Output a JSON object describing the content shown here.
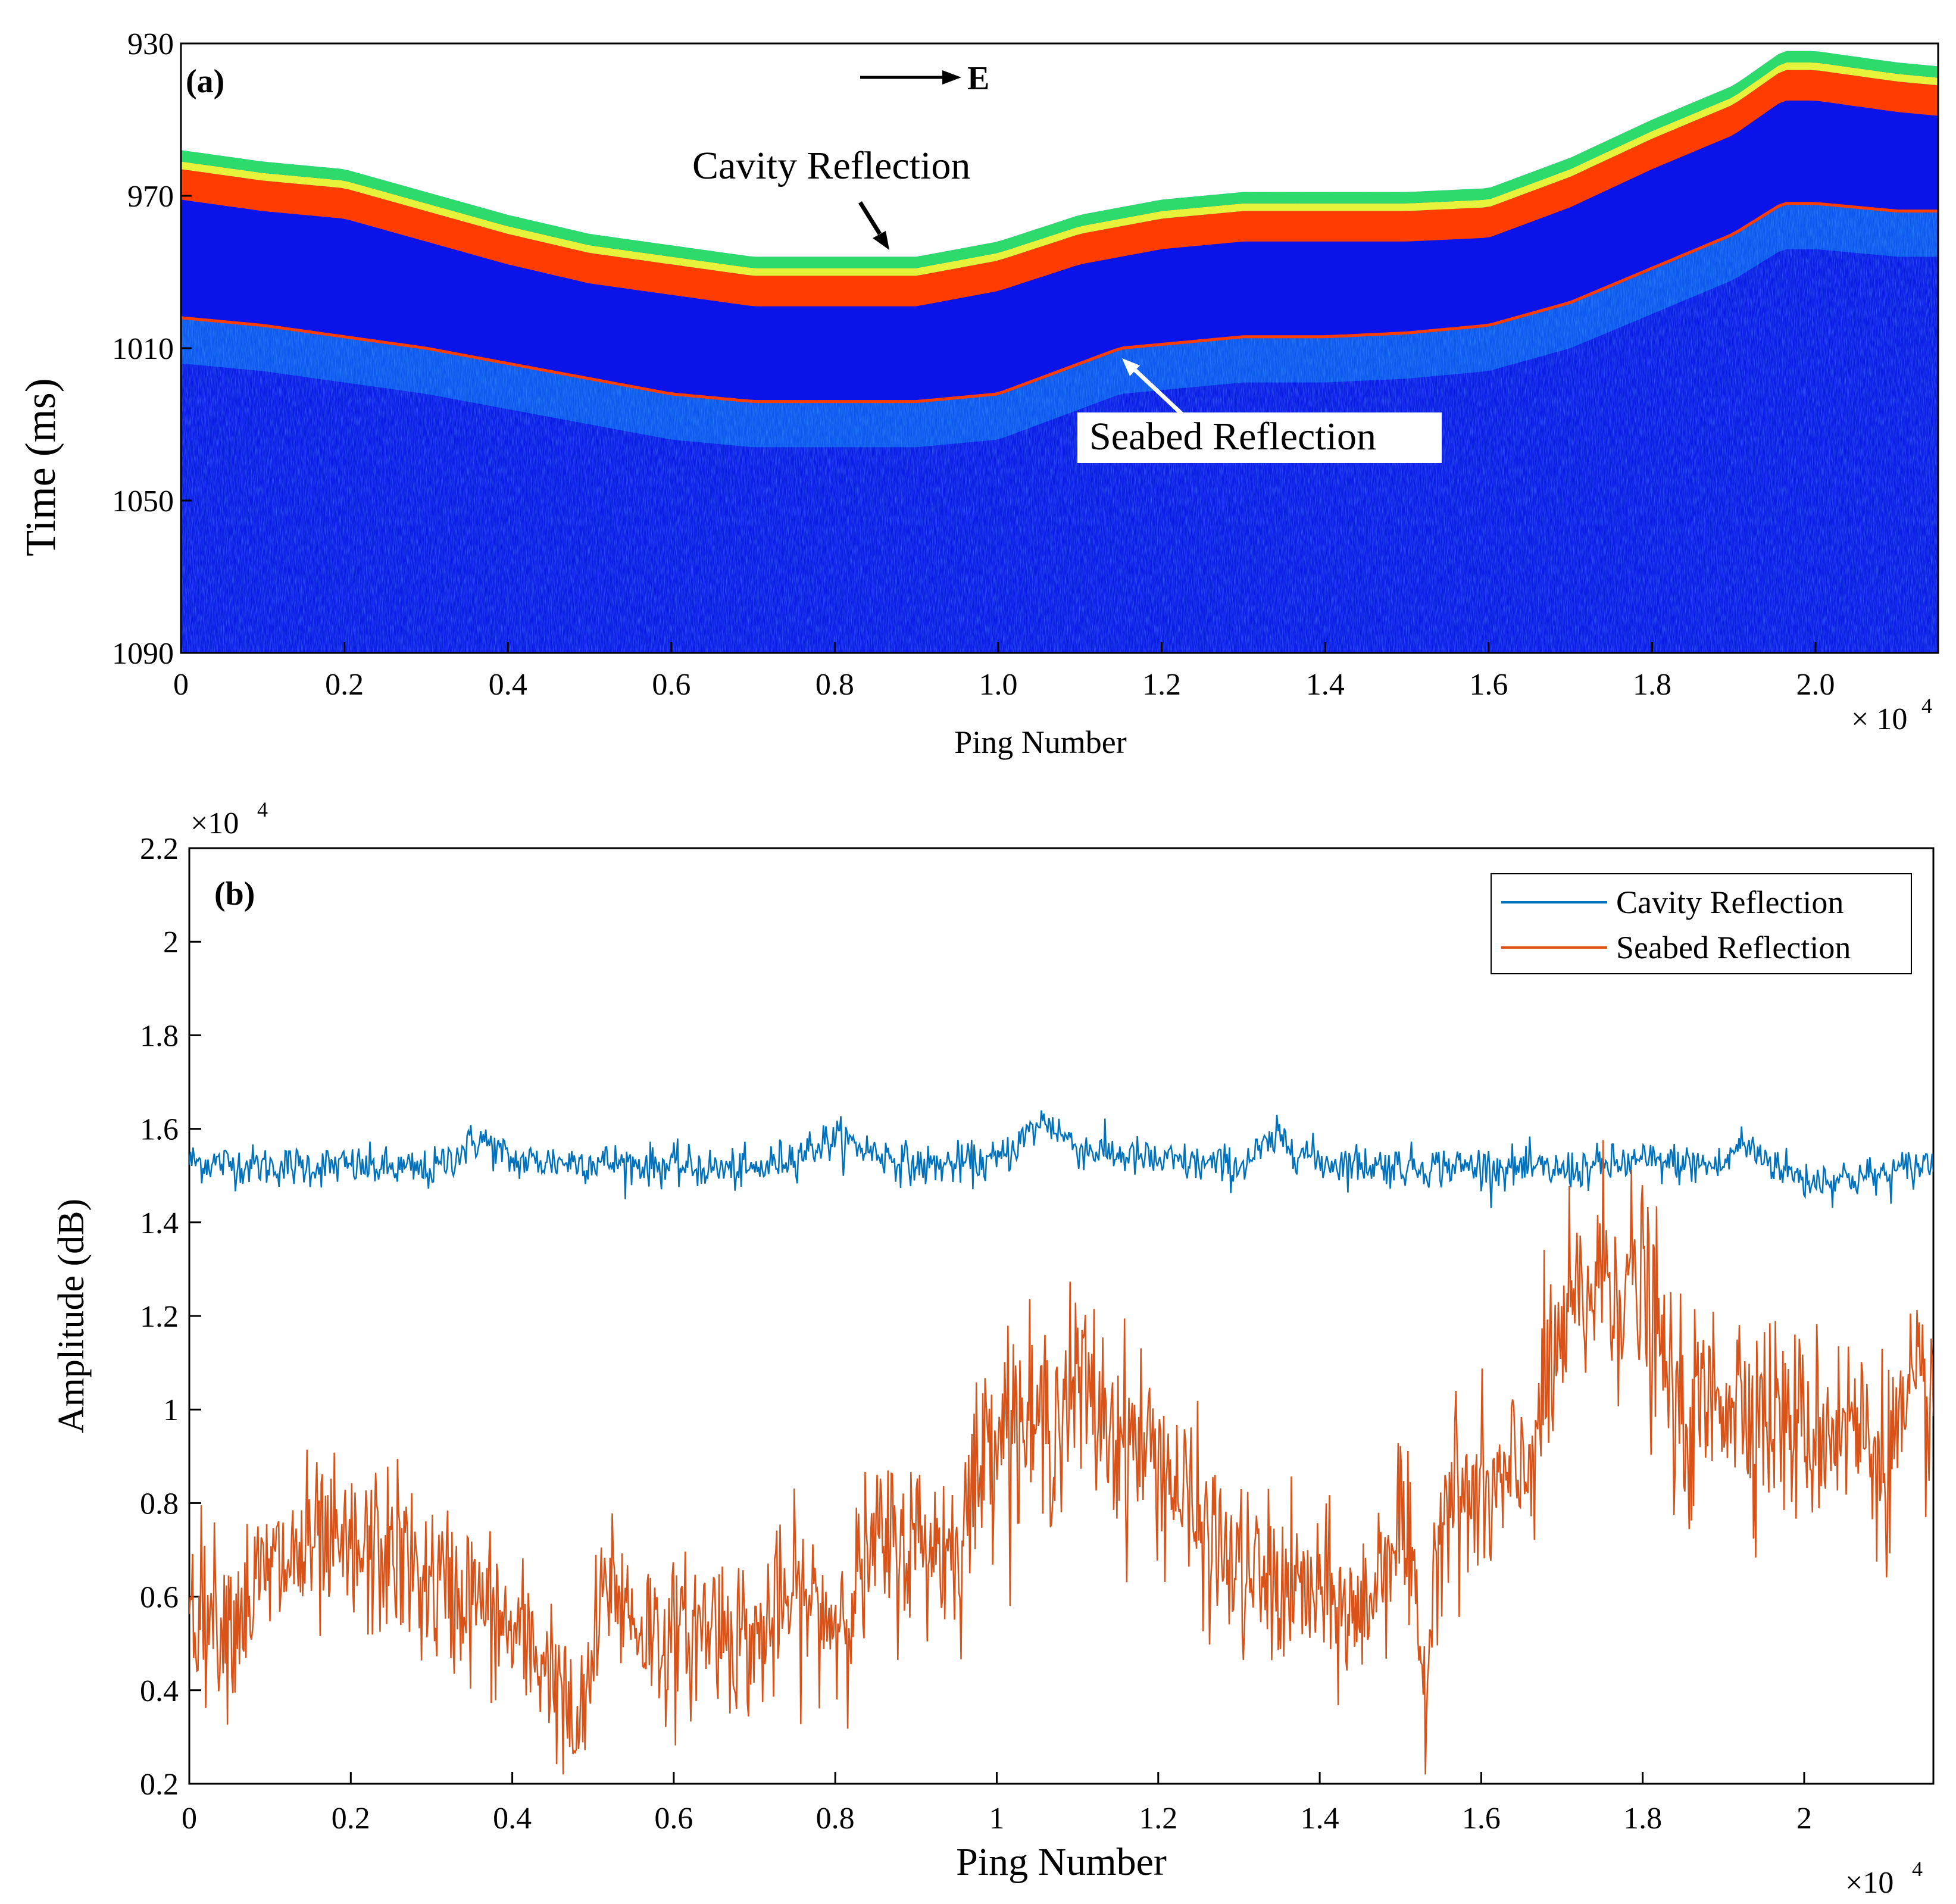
{
  "chart_data": [
    {
      "type": "heatmap",
      "panel_label": "(a)",
      "title": "",
      "xlabel": "Ping Number",
      "ylabel": "Time (ms)",
      "x_multiplier": "× 10",
      "x_multiplier_exp": "4",
      "xlim": [
        0,
        2.15
      ],
      "ylim": [
        930,
        1090
      ],
      "y_reversed": true,
      "xticks": [
        0,
        0.2,
        0.4,
        0.6,
        0.8,
        1.0,
        1.2,
        1.4,
        1.6,
        1.8,
        2.0
      ],
      "xtick_labels": [
        "0",
        "0.2",
        "0.4",
        "0.6",
        "0.8",
        "1.0",
        "1.2",
        "1.4",
        "1.6",
        "1.8",
        "2.0"
      ],
      "yticks": [
        930,
        970,
        1010,
        1050,
        1090
      ],
      "ytick_labels": [
        "930",
        "970",
        "1010",
        "1050",
        "1090"
      ],
      "direction_label": "E",
      "annotations": [
        {
          "text": "Cavity Reflection",
          "x": 0.86,
          "y": 985
        },
        {
          "text": "Seabed Reflection",
          "x": 1.15,
          "y": 1014
        }
      ],
      "cavity_surface_ms": {
        "x": [
          0,
          0.1,
          0.2,
          0.3,
          0.4,
          0.5,
          0.6,
          0.7,
          0.8,
          0.9,
          1.0,
          1.1,
          1.2,
          1.3,
          1.4,
          1.5,
          1.6,
          1.7,
          1.8,
          1.9,
          1.96,
          2.0,
          2.1,
          2.15
        ],
        "y": [
          958,
          961,
          963,
          969,
          975,
          980,
          983,
          986,
          986,
          986,
          982,
          975,
          971,
          969,
          969,
          969,
          968,
          960,
          950,
          941,
          932,
          932,
          935,
          936
        ]
      },
      "seabed_ms": {
        "x": [
          0,
          0.1,
          0.2,
          0.3,
          0.4,
          0.5,
          0.6,
          0.7,
          0.8,
          0.9,
          1.0,
          1.05,
          1.1,
          1.15,
          1.2,
          1.3,
          1.4,
          1.5,
          1.6,
          1.7,
          1.8,
          1.9,
          1.96,
          2.0,
          2.1,
          2.15
        ],
        "y": [
          1002,
          1004,
          1007,
          1010,
          1014,
          1018,
          1022,
          1024,
          1024,
          1024,
          1022,
          1018,
          1014,
          1010,
          1009,
          1007,
          1007,
          1006,
          1004,
          998,
          989,
          980,
          972,
          972,
          974,
          974
        ]
      },
      "colorscale": [
        "#0a14e8",
        "#0a6cff",
        "#17c9ff",
        "#2ddb6d",
        "#e7f23a",
        "#ff8a00",
        "#ff3d00"
      ]
    },
    {
      "type": "line",
      "panel_label": "(b)",
      "title": "",
      "xlabel": "Ping Number",
      "ylabel": "Amplitude (dB)",
      "x_multiplier": "×10",
      "x_multiplier_exp": "4",
      "y_multiplier": "×10",
      "y_multiplier_exp": "4",
      "xlim": [
        0,
        2.16
      ],
      "ylim": [
        0.2,
        2.2
      ],
      "xticks": [
        0,
        0.2,
        0.4,
        0.6,
        0.8,
        1,
        1.2,
        1.4,
        1.6,
        1.8,
        2
      ],
      "xtick_labels": [
        "0",
        "0.2",
        "0.4",
        "0.6",
        "0.8",
        "1",
        "1.2",
        "1.4",
        "1.6",
        "1.8",
        "2"
      ],
      "yticks": [
        0.2,
        0.4,
        0.6,
        0.8,
        1,
        1.2,
        1.4,
        1.6,
        1.8,
        2,
        2.2
      ],
      "ytick_labels": [
        "0.2",
        "0.4",
        "0.6",
        "0.8",
        "1",
        "1.2",
        "1.4",
        "1.6",
        "1.8",
        "2",
        "2.2"
      ],
      "legend_position": "top-right",
      "series": [
        {
          "name": "Cavity Reflection",
          "color": "#0072bd",
          "x": [
            0,
            0.1,
            0.2,
            0.3,
            0.36,
            0.4,
            0.5,
            0.6,
            0.7,
            0.8,
            0.9,
            1.0,
            1.06,
            1.1,
            1.2,
            1.3,
            1.35,
            1.4,
            1.5,
            1.6,
            1.7,
            1.8,
            1.9,
            1.92,
            2.0,
            2.1,
            2.16
          ],
          "values": [
            1.53,
            1.52,
            1.52,
            1.51,
            1.58,
            1.53,
            1.53,
            1.52,
            1.51,
            1.58,
            1.52,
            1.53,
            1.62,
            1.56,
            1.53,
            1.52,
            1.58,
            1.53,
            1.52,
            1.52,
            1.51,
            1.53,
            1.52,
            1.57,
            1.49,
            1.5,
            1.53
          ]
        },
        {
          "name": "Seabed Reflection",
          "color": "#d95319",
          "x": [
            0,
            0.05,
            0.1,
            0.15,
            0.2,
            0.25,
            0.3,
            0.35,
            0.4,
            0.45,
            0.48,
            0.52,
            0.55,
            0.6,
            0.65,
            0.7,
            0.75,
            0.8,
            0.85,
            0.9,
            0.95,
            1.0,
            1.05,
            1.1,
            1.15,
            1.2,
            1.25,
            1.3,
            1.35,
            1.4,
            1.45,
            1.5,
            1.53,
            1.55,
            1.6,
            1.65,
            1.7,
            1.75,
            1.8,
            1.85,
            1.9,
            1.95,
            2.0,
            2.05,
            2.1,
            2.16
          ],
          "values": [
            0.6,
            0.55,
            0.65,
            0.7,
            0.68,
            0.7,
            0.62,
            0.6,
            0.52,
            0.45,
            0.28,
            0.65,
            0.55,
            0.5,
            0.55,
            0.5,
            0.6,
            0.55,
            0.7,
            0.72,
            0.7,
            1.0,
            0.95,
            1.05,
            0.95,
            0.9,
            0.75,
            0.65,
            0.62,
            0.6,
            0.55,
            0.78,
            0.4,
            0.82,
            0.8,
            0.85,
            1.15,
            1.3,
            1.25,
            0.95,
            1.05,
            1.0,
            0.95,
            0.98,
            0.9,
            1.05
          ]
        }
      ]
    }
  ]
}
